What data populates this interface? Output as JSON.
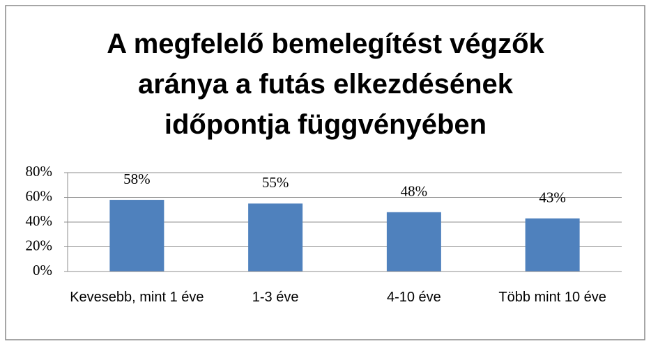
{
  "chart_data": {
    "type": "bar",
    "title": "A megfelelő bemelegítést végzők aránya a futás elkezdésének időpontja függvényében",
    "categories": [
      "Kevesebb, mint 1 éve",
      "1-3 éve",
      "4-10 éve",
      "Több mint 10 éve"
    ],
    "values": [
      58,
      55,
      48,
      43
    ],
    "value_labels": [
      "58%",
      "55%",
      "48%",
      "43%"
    ],
    "color": "#4f81bd",
    "ylim": [
      0,
      80
    ],
    "yticks": [
      {
        "value": 0,
        "label": "0%"
      },
      {
        "value": 20,
        "label": "20%"
      },
      {
        "value": 40,
        "label": "40%"
      },
      {
        "value": 60,
        "label": "60%"
      },
      {
        "value": 80,
        "label": "80%"
      }
    ],
    "grid": true
  }
}
